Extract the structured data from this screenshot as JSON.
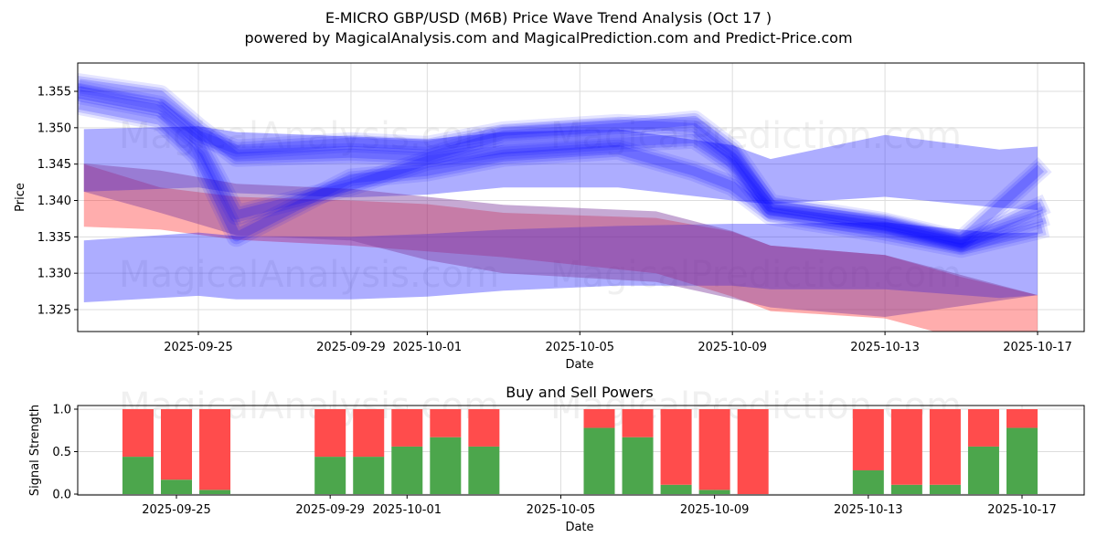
{
  "header": {
    "title": "E-MICRO GBP/USD (M6B) Price Wave Trend Analysis (Oct 17 )",
    "subtitle": "powered by MagicalAnalysis.com and MagicalPrediction.com and Predict-Price.com"
  },
  "watermarks": [
    "MagicalAnalysis.com",
    "MagicalPrediction.com"
  ],
  "colors": {
    "blue_band": "#0000ff",
    "red_band": "#ff0000",
    "buy": "#4ca64c",
    "sell": "#ff4c4c",
    "grid": "#dddddd"
  },
  "chart_data": [
    {
      "type": "area",
      "title": "E-MICRO GBP/USD (M6B) Price Wave Trend Analysis (Oct 17 )",
      "xlabel": "Date",
      "ylabel": "Price",
      "ylim": [
        1.3222,
        1.359
      ],
      "xlim": [
        "2025-09-21T20:00",
        "2025-10-18T04:00"
      ],
      "yticks": [
        "1.325",
        "1.330",
        "1.335",
        "1.340",
        "1.345",
        "1.350",
        "1.355"
      ],
      "ytick_values": [
        1.325,
        1.33,
        1.335,
        1.34,
        1.345,
        1.35,
        1.355
      ],
      "xticks": [
        "2025-09-25",
        "2025-09-29",
        "2025-10-01",
        "2025-10-05",
        "2025-10-09",
        "2025-10-13",
        "2025-10-17"
      ],
      "grid": true,
      "bands": [
        {
          "name": "upper-trend-band",
          "color": "blue",
          "opacity": 0.32,
          "x": [
            "2025-09-22",
            "2025-09-25",
            "2025-09-26",
            "2025-09-29",
            "2025-10-01",
            "2025-10-03",
            "2025-10-06",
            "2025-10-09",
            "2025-10-10",
            "2025-10-13",
            "2025-10-16",
            "2025-10-17"
          ],
          "upper": [
            1.3498,
            1.3502,
            1.3494,
            1.3488,
            1.3484,
            1.3494,
            1.3498,
            1.3476,
            1.3457,
            1.349,
            1.347,
            1.3474
          ],
          "lower": [
            1.3412,
            1.3418,
            1.341,
            1.3404,
            1.3408,
            1.3418,
            1.3418,
            1.34,
            1.3395,
            1.3405,
            1.339,
            1.3387
          ]
        },
        {
          "name": "lower-trend-band",
          "color": "blue",
          "opacity": 0.32,
          "x": [
            "2025-09-22",
            "2025-09-25",
            "2025-09-26",
            "2025-09-29",
            "2025-10-01",
            "2025-10-03",
            "2025-10-06",
            "2025-10-09",
            "2025-10-10",
            "2025-10-13",
            "2025-10-16",
            "2025-10-17"
          ],
          "upper": [
            1.3345,
            1.3356,
            1.3351,
            1.335,
            1.3354,
            1.336,
            1.3365,
            1.3368,
            1.3368,
            1.337,
            1.3355,
            1.3356
          ],
          "lower": [
            1.326,
            1.3269,
            1.3264,
            1.3264,
            1.3268,
            1.3276,
            1.3283,
            1.3283,
            1.3278,
            1.3278,
            1.3266,
            1.327
          ]
        },
        {
          "name": "purple-band",
          "color": "purple",
          "opacity": 0.45,
          "x": [
            "2025-09-22",
            "2025-09-24",
            "2025-09-26",
            "2025-09-29",
            "2025-10-01",
            "2025-10-03",
            "2025-10-07",
            "2025-10-09",
            "2025-10-10",
            "2025-10-13",
            "2025-10-17"
          ],
          "upper": [
            1.3451,
            1.3441,
            1.3423,
            1.3416,
            1.3405,
            1.3394,
            1.3385,
            1.3358,
            1.3338,
            1.3325,
            1.327
          ],
          "lower": [
            1.3412,
            1.3383,
            1.3352,
            1.3345,
            1.3318,
            1.33,
            1.3288,
            1.3265,
            1.3253,
            1.324,
            1.327
          ]
        },
        {
          "name": "red-band",
          "color": "red",
          "opacity": 0.32,
          "x": [
            "2025-09-22",
            "2025-09-24",
            "2025-09-26",
            "2025-09-29",
            "2025-10-01",
            "2025-10-03",
            "2025-10-07",
            "2025-10-09",
            "2025-10-10",
            "2025-10-13",
            "2025-10-15",
            "2025-10-17"
          ],
          "upper": [
            1.345,
            1.3418,
            1.3405,
            1.34,
            1.3395,
            1.3383,
            1.3376,
            1.3357,
            1.3338,
            1.3325,
            1.3295,
            1.327
          ],
          "lower": [
            1.3364,
            1.336,
            1.3346,
            1.3338,
            1.333,
            1.3322,
            1.33,
            1.3268,
            1.3248,
            1.3238,
            1.321,
            1.3195
          ]
        }
      ],
      "wave_paths": [
        {
          "name": "wave-1",
          "x": [
            "2025-09-22",
            "2025-09-24",
            "2025-09-25",
            "2025-09-26",
            "2025-09-29",
            "2025-10-01",
            "2025-10-03",
            "2025-10-06",
            "2025-10-08",
            "2025-10-09",
            "2025-10-10",
            "2025-10-13",
            "2025-10-15",
            "2025-10-17"
          ],
          "y": [
            1.3545,
            1.3525,
            1.348,
            1.338,
            1.342,
            1.3455,
            1.347,
            1.348,
            1.3485,
            1.345,
            1.3385,
            1.3365,
            1.334,
            1.3375
          ]
        },
        {
          "name": "wave-2",
          "x": [
            "2025-09-22",
            "2025-09-24",
            "2025-09-25",
            "2025-09-26",
            "2025-09-29",
            "2025-10-01",
            "2025-10-03",
            "2025-10-06",
            "2025-10-08",
            "2025-10-09",
            "2025-10-10",
            "2025-10-13",
            "2025-10-15",
            "2025-10-17"
          ],
          "y": [
            1.356,
            1.3545,
            1.35,
            1.346,
            1.3465,
            1.346,
            1.349,
            1.35,
            1.351,
            1.347,
            1.3395,
            1.337,
            1.3345,
            1.344
          ]
        },
        {
          "name": "wave-3",
          "x": [
            "2025-09-22",
            "2025-09-24",
            "2025-09-25",
            "2025-09-26",
            "2025-09-29",
            "2025-10-01",
            "2025-10-03",
            "2025-10-06",
            "2025-10-08",
            "2025-10-09",
            "2025-10-10",
            "2025-10-13",
            "2025-10-15",
            "2025-10-17"
          ],
          "y": [
            1.353,
            1.351,
            1.346,
            1.335,
            1.343,
            1.344,
            1.346,
            1.347,
            1.344,
            1.342,
            1.338,
            1.3355,
            1.3335,
            1.336
          ]
        },
        {
          "name": "wave-4",
          "x": [
            "2025-09-22",
            "2025-09-24",
            "2025-09-25",
            "2025-09-26",
            "2025-09-29",
            "2025-10-01",
            "2025-10-03",
            "2025-10-06",
            "2025-10-08",
            "2025-10-09",
            "2025-10-10",
            "2025-10-13",
            "2025-10-15",
            "2025-10-17"
          ],
          "y": [
            1.355,
            1.353,
            1.349,
            1.347,
            1.348,
            1.3475,
            1.3495,
            1.3505,
            1.35,
            1.346,
            1.339,
            1.3368,
            1.3342,
            1.339
          ]
        }
      ]
    },
    {
      "type": "bar",
      "title": "Buy and Sell Powers",
      "xlabel": "Date",
      "ylabel": "Signal Strength",
      "ylim": [
        0,
        1.05
      ],
      "yticks": [
        "0.0",
        "0.5",
        "1.0"
      ],
      "ytick_values": [
        0,
        0.5,
        1.0
      ],
      "xticks": [
        "2025-09-25",
        "2025-09-29",
        "2025-10-01",
        "2025-10-05",
        "2025-10-09",
        "2025-10-13",
        "2025-10-17"
      ],
      "grid": true,
      "categories": [
        "2025-09-24",
        "2025-09-25",
        "2025-09-26",
        "2025-09-29",
        "2025-09-30",
        "2025-10-01",
        "2025-10-02",
        "2025-10-03",
        "2025-10-06",
        "2025-10-07",
        "2025-10-08",
        "2025-10-09",
        "2025-10-10",
        "2025-10-13",
        "2025-10-14",
        "2025-10-15",
        "2025-10-16",
        "2025-10-17"
      ],
      "series": [
        {
          "name": "Buy",
          "color": "#4ca64c",
          "values": [
            0.44,
            0.17,
            0.05,
            0.44,
            0.44,
            0.56,
            0.67,
            0.56,
            0.78,
            0.67,
            0.11,
            0.05,
            0.0,
            0.28,
            0.11,
            0.11,
            0.56,
            0.78
          ]
        },
        {
          "name": "Sell",
          "color": "#ff4c4c",
          "values": [
            0.56,
            0.83,
            0.95,
            0.56,
            0.56,
            0.44,
            0.33,
            0.44,
            0.22,
            0.33,
            0.89,
            0.95,
            1.0,
            0.72,
            0.89,
            0.89,
            0.44,
            0.22
          ]
        }
      ]
    }
  ]
}
